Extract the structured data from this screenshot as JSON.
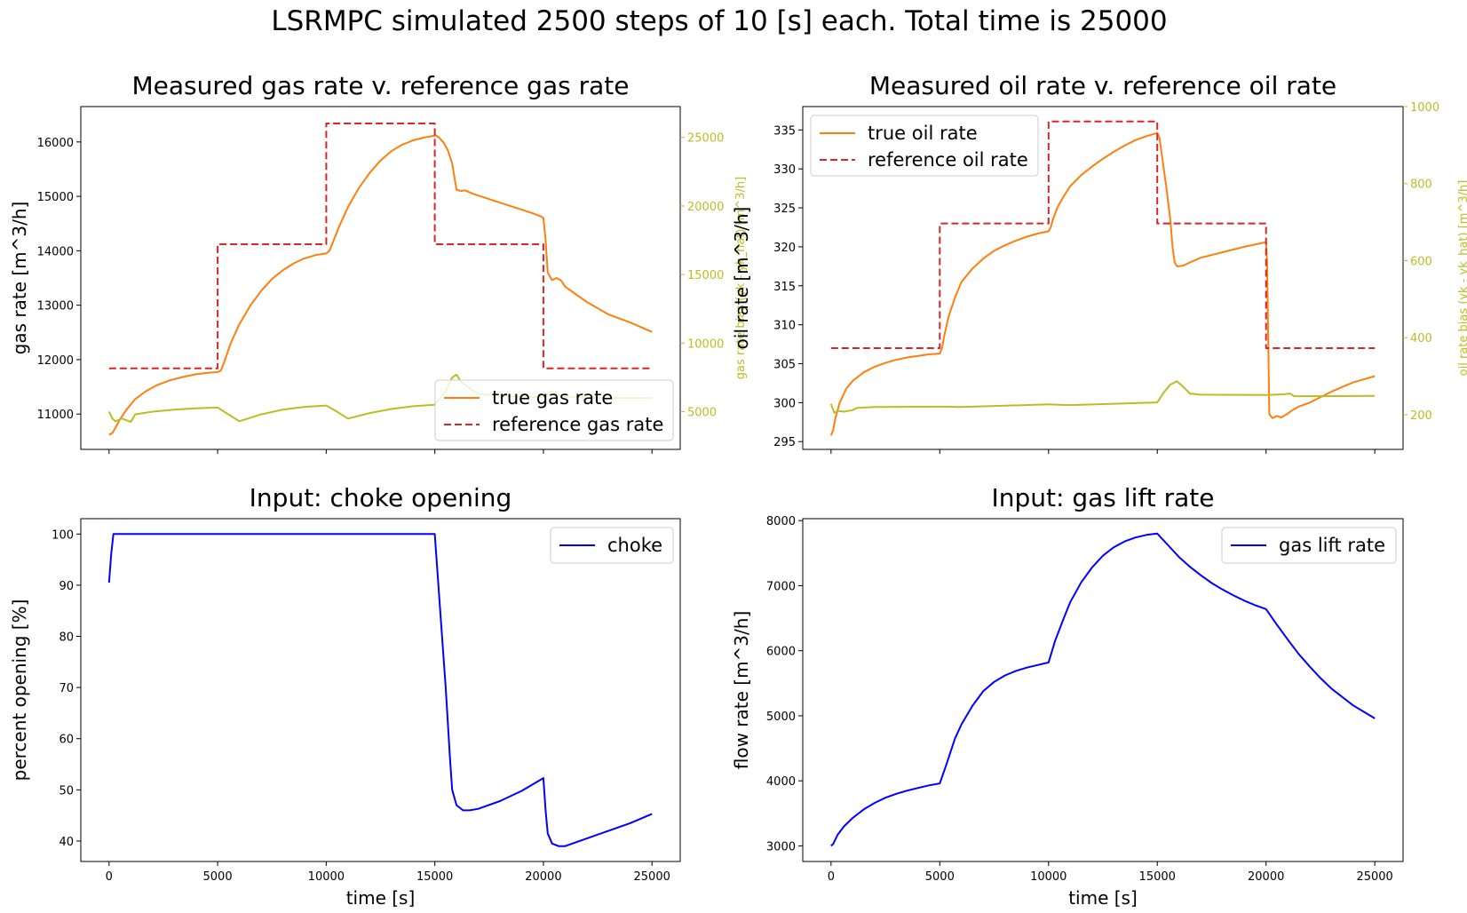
{
  "figure_title": "LSRMPC simulated 2500 steps of 10 [s] each. Total time is 25000",
  "colors": {
    "orange": "#ff7f0e",
    "red": "#d62728",
    "olive": "#bcbd22",
    "blue": "#0000ff"
  },
  "chart_data": [
    {
      "id": "gas",
      "type": "line",
      "title": "Measured gas rate v. reference gas rate",
      "xlabel": "",
      "ylabel": "gas rate [m^3/h]",
      "y2label": "gas rate bias (yk - yk_hat) [m^3/h]",
      "xlim": [
        -1300,
        26300
      ],
      "ylim": [
        10350,
        16650
      ],
      "y2lim": [
        2250,
        27250
      ],
      "xticks": [
        0,
        5000,
        10000,
        15000,
        20000,
        25000
      ],
      "xticklabels": [
        "",
        "",
        "",
        "",
        "",
        ""
      ],
      "yticks": [
        11000,
        12000,
        13000,
        14000,
        15000,
        16000
      ],
      "yticklabels": [
        "11000",
        "12000",
        "13000",
        "14000",
        "15000",
        "16000"
      ],
      "y2ticks": [
        5000,
        10000,
        15000,
        20000,
        25000
      ],
      "y2ticklabels": [
        "5000",
        "10000",
        "15000",
        "20000",
        "25000"
      ],
      "legend": {
        "position": "lower right"
      },
      "series": [
        {
          "name": "true gas rate",
          "color": "#ff7f0e",
          "style": "solid",
          "axis": "left",
          "x": [
            0,
            150,
            300,
            500,
            800,
            1200,
            1700,
            2200,
            2800,
            3400,
            4000,
            4600,
            5000,
            5150,
            5300,
            5600,
            6000,
            6500,
            7000,
            7500,
            8000,
            8500,
            9000,
            9500,
            10000,
            10150,
            10300,
            10600,
            11000,
            11500,
            12000,
            12500,
            13000,
            13500,
            14000,
            14500,
            14900,
            15050,
            15200,
            15400,
            15600,
            15800,
            16000,
            16200,
            16400,
            16800,
            17500,
            18500,
            19500,
            19900,
            20000,
            20100,
            20200,
            20400,
            20600,
            20800,
            21000,
            22000,
            23000,
            24000,
            25000
          ],
          "y": [
            10620,
            10650,
            10750,
            10900,
            11080,
            11270,
            11420,
            11530,
            11620,
            11680,
            11730,
            11760,
            11770,
            11800,
            11950,
            12300,
            12650,
            12990,
            13260,
            13480,
            13640,
            13770,
            13860,
            13920,
            13950,
            14000,
            14150,
            14450,
            14800,
            15150,
            15430,
            15660,
            15830,
            15950,
            16030,
            16080,
            16110,
            16120,
            16080,
            15990,
            15850,
            15600,
            15120,
            15100,
            15110,
            15040,
            14950,
            14820,
            14690,
            14630,
            14600,
            14200,
            13600,
            13460,
            13500,
            13460,
            13340,
            13060,
            12830,
            12680,
            12510
          ]
        },
        {
          "name": "reference gas rate",
          "color": "#d62728",
          "style": "dashed",
          "axis": "left",
          "x": [
            0,
            5000,
            5000,
            10000,
            10000,
            15000,
            15000,
            20000,
            20000,
            25000
          ],
          "y": [
            11840,
            11840,
            14120,
            14120,
            16340,
            16340,
            14120,
            14120,
            11840,
            11840
          ]
        },
        {
          "name": "gas rate bias",
          "color": "#bcbd22",
          "style": "solid",
          "axis": "right",
          "x": [
            0,
            150,
            300,
            600,
            1000,
            1200,
            2000,
            3000,
            4000,
            5000,
            5500,
            6000,
            7000,
            8000,
            9000,
            10000,
            10500,
            11000,
            12000,
            13000,
            14000,
            15000,
            15500,
            15800,
            16000,
            16200,
            16600,
            17000,
            18000,
            19000,
            20000,
            20400,
            20700,
            21000,
            22000,
            23000,
            24000,
            25000
          ],
          "y": [
            5000,
            4500,
            4300,
            4500,
            4250,
            4800,
            5000,
            5150,
            5250,
            5300,
            4800,
            4300,
            4800,
            5150,
            5350,
            5450,
            5000,
            4500,
            4900,
            5200,
            5400,
            5500,
            6500,
            7500,
            7700,
            7200,
            6700,
            6300,
            6150,
            6100,
            6050,
            6500,
            6250,
            6050,
            6050,
            6000,
            6000,
            6000
          ]
        }
      ]
    },
    {
      "id": "oil",
      "type": "line",
      "title": "Measured oil rate v. reference oil rate",
      "xlabel": "",
      "ylabel": "oil rate [m^3/h]",
      "y2label": "oil rate bias (yk - yk_hat) [m^3/h]",
      "xlim": [
        -1300,
        26300
      ],
      "ylim": [
        294,
        338
      ],
      "y2lim": [
        110,
        1000
      ],
      "xticks": [
        0,
        5000,
        10000,
        15000,
        20000,
        25000
      ],
      "xticklabels": [
        "",
        "",
        "",
        "",
        "",
        ""
      ],
      "yticks": [
        295,
        300,
        305,
        310,
        315,
        320,
        325,
        330,
        335
      ],
      "yticklabels": [
        "295",
        "300",
        "305",
        "310",
        "315",
        "320",
        "325",
        "330",
        "335"
      ],
      "y2ticks": [
        200,
        400,
        600,
        800,
        1000
      ],
      "y2ticklabels": [
        "200",
        "400",
        "600",
        "800",
        "1000"
      ],
      "legend": {
        "position": "upper left"
      },
      "series": [
        {
          "name": "true oil rate",
          "color": "#ff7f0e",
          "style": "solid",
          "axis": "left",
          "x": [
            0,
            100,
            200,
            400,
            700,
            1000,
            1500,
            2000,
            2500,
            3000,
            3500,
            4000,
            4500,
            5000,
            5100,
            5200,
            5400,
            5700,
            6000,
            6500,
            7000,
            7500,
            8000,
            8500,
            9000,
            9500,
            10000,
            10100,
            10200,
            10400,
            10700,
            11000,
            11500,
            12000,
            12500,
            13000,
            13500,
            14000,
            14500,
            15000,
            15100,
            15200,
            15400,
            15600,
            15700,
            15800,
            15900,
            16000,
            16200,
            16500,
            17000,
            18000,
            19000,
            20000,
            20050,
            20150,
            20300,
            20500,
            20700,
            21000,
            21200,
            21500,
            22000,
            23000,
            24000,
            25000
          ],
          "y": [
            295.8,
            296.5,
            298.0,
            300.0,
            301.8,
            302.8,
            303.9,
            304.6,
            305.1,
            305.5,
            305.8,
            306.0,
            306.2,
            306.3,
            307.0,
            308.5,
            311.0,
            313.5,
            315.5,
            317.2,
            318.5,
            319.5,
            320.2,
            320.8,
            321.3,
            321.7,
            322.0,
            322.5,
            323.5,
            325.0,
            326.5,
            327.8,
            329.2,
            330.3,
            331.3,
            332.2,
            333.0,
            333.7,
            334.2,
            334.6,
            334.0,
            332.0,
            328.0,
            323.5,
            320.0,
            318.0,
            317.5,
            317.5,
            317.6,
            318.0,
            318.6,
            319.3,
            320.0,
            320.6,
            318.0,
            298.5,
            298.0,
            298.3,
            298.1,
            298.6,
            299.0,
            299.5,
            300.0,
            301.4,
            302.6,
            303.4
          ]
        },
        {
          "name": "reference oil rate",
          "color": "#d62728",
          "style": "dashed",
          "axis": "left",
          "x": [
            0,
            5000,
            5000,
            10000,
            10000,
            15000,
            15000,
            20000,
            20000,
            25000
          ],
          "y": [
            307,
            307,
            323,
            323,
            336.1,
            336.1,
            323,
            323,
            307,
            307
          ]
        },
        {
          "name": "oil rate bias",
          "color": "#bcbd22",
          "style": "solid",
          "axis": "right",
          "x": [
            0,
            150,
            300,
            600,
            1000,
            1200,
            2000,
            5000,
            6000,
            10000,
            10500,
            11000,
            15000,
            15300,
            15600,
            15900,
            16200,
            16500,
            17000,
            20000,
            20800,
            21100,
            21300,
            22000,
            25000
          ],
          "y": [
            228,
            205,
            210,
            208,
            212,
            218,
            220,
            221,
            220,
            227,
            226,
            225,
            232,
            258,
            278,
            287,
            272,
            255,
            252,
            251,
            253,
            255,
            248,
            248,
            249
          ]
        }
      ]
    },
    {
      "id": "choke",
      "type": "line",
      "title": "Input: choke opening",
      "xlabel": "time [s]",
      "ylabel": "percent opening [%]",
      "xlim": [
        -1300,
        26300
      ],
      "ylim": [
        36,
        103
      ],
      "xticks": [
        0,
        5000,
        10000,
        15000,
        20000,
        25000
      ],
      "xticklabels": [
        "0",
        "5000",
        "10000",
        "15000",
        "20000",
        "25000"
      ],
      "yticks": [
        40,
        50,
        60,
        70,
        80,
        90,
        100
      ],
      "yticklabels": [
        "40",
        "50",
        "60",
        "70",
        "80",
        "90",
        "100"
      ],
      "legend": {
        "position": "upper right"
      },
      "series": [
        {
          "name": "choke",
          "color": "#0000ff",
          "style": "solid",
          "axis": "left",
          "x": [
            0,
            100,
            200,
            15000,
            15200,
            15500,
            15700,
            15800,
            16000,
            16300,
            16600,
            17000,
            18000,
            19000,
            20000,
            20100,
            20200,
            20400,
            20700,
            21000,
            22000,
            23000,
            24000,
            25000
          ],
          "y": [
            90.5,
            96,
            100,
            100,
            88,
            70,
            56,
            50,
            47,
            46,
            46,
            46.3,
            47.8,
            49.8,
            52.3,
            46,
            41.5,
            39.5,
            39,
            39,
            40.5,
            42,
            43.5,
            45.3
          ]
        }
      ]
    },
    {
      "id": "lift",
      "type": "line",
      "title": "Input: gas lift rate",
      "xlabel": "time [s]",
      "ylabel": "flow rate [m^3/h]",
      "xlim": [
        -1300,
        26300
      ],
      "ylim": [
        2760,
        8030
      ],
      "xticks": [
        0,
        5000,
        10000,
        15000,
        20000,
        25000
      ],
      "xticklabels": [
        "0",
        "5000",
        "10000",
        "15000",
        "20000",
        "25000"
      ],
      "yticks": [
        3000,
        4000,
        5000,
        6000,
        7000,
        8000
      ],
      "yticklabels": [
        "3000",
        "4000",
        "5000",
        "6000",
        "7000",
        "8000"
      ],
      "legend": {
        "position": "upper right"
      },
      "series": [
        {
          "name": "gas lift rate",
          "color": "#0000ff",
          "style": "solid",
          "axis": "left",
          "x": [
            0,
            100,
            300,
            600,
            1000,
            1500,
            2000,
            2500,
            3000,
            3500,
            4000,
            4500,
            5000,
            5300,
            5700,
            6000,
            6500,
            7000,
            7500,
            8000,
            8500,
            9000,
            9500,
            10000,
            10300,
            10700,
            11000,
            11500,
            12000,
            12500,
            13000,
            13500,
            14000,
            14500,
            15000,
            15500,
            16000,
            16500,
            17000,
            17500,
            18000,
            18500,
            19000,
            19500,
            20000,
            20500,
            21000,
            21500,
            22000,
            22500,
            23000,
            23500,
            24000,
            24500,
            25000
          ],
          "y": [
            3000,
            3030,
            3170,
            3300,
            3430,
            3560,
            3660,
            3740,
            3800,
            3850,
            3890,
            3930,
            3960,
            4250,
            4650,
            4870,
            5150,
            5380,
            5520,
            5620,
            5690,
            5740,
            5780,
            5820,
            6150,
            6500,
            6750,
            7050,
            7280,
            7460,
            7590,
            7680,
            7740,
            7780,
            7800,
            7620,
            7440,
            7290,
            7160,
            7040,
            6940,
            6850,
            6770,
            6700,
            6640,
            6400,
            6170,
            5950,
            5760,
            5580,
            5420,
            5290,
            5160,
            5060,
            4960
          ]
        }
      ]
    }
  ]
}
